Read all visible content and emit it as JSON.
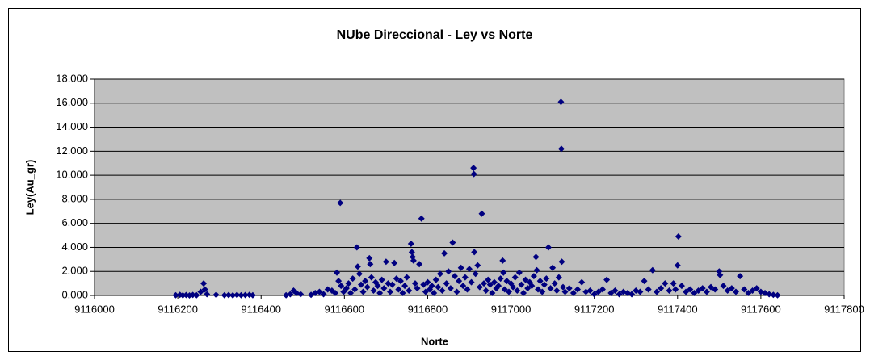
{
  "chart_data": {
    "type": "scatter",
    "title": "NUbe Direccional - Ley vs Norte",
    "x_label": "Norte",
    "y_label": "Ley(Au_gr)",
    "color": "#000080",
    "grid": true,
    "x": [
      9116195,
      9116205,
      9116212,
      9116220,
      9116228,
      9116236,
      9116245,
      9116255,
      9116262,
      9116265,
      9116270,
      9116292,
      9116312,
      9116322,
      9116332,
      9116342,
      9116352,
      9116362,
      9116372,
      9116380,
      9116460,
      9116470,
      9116478,
      9116485,
      9116495,
      9116520,
      9116530,
      9116540,
      9116550,
      9116560,
      9116570,
      9116578,
      9116582,
      9116586,
      9116590,
      9116592,
      9116598,
      9116605,
      9116610,
      9116615,
      9116620,
      9116625,
      9116630,
      9116632,
      9116636,
      9116640,
      9116645,
      9116650,
      9116655,
      9116660,
      9116662,
      9116665,
      9116670,
      9116675,
      9116680,
      9116685,
      9116690,
      9116695,
      9116700,
      9116705,
      9116710,
      9116715,
      9116720,
      9116725,
      9116730,
      9116735,
      9116740,
      9116745,
      9116750,
      9116755,
      9116760,
      9116762,
      9116764,
      9116766,
      9116770,
      9116775,
      9116780,
      9116785,
      9116790,
      9116795,
      9116800,
      9116805,
      9116810,
      9116815,
      9116820,
      9116825,
      9116830,
      9116835,
      9116840,
      9116845,
      9116850,
      9116855,
      9116860,
      9116865,
      9116870,
      9116875,
      9116880,
      9116885,
      9116890,
      9116895,
      9116900,
      9116905,
      9116910,
      9116911,
      9116912,
      9116915,
      9116920,
      9116925,
      9116930,
      9116935,
      9116940,
      9116945,
      9116950,
      9116955,
      9116960,
      9116965,
      9116970,
      9116975,
      9116980,
      9116982,
      9116985,
      9116990,
      9116995,
      9117000,
      9117005,
      9117010,
      9117015,
      9117020,
      9117025,
      9117030,
      9117035,
      9117040,
      9117045,
      9117050,
      9117055,
      9117060,
      9117062,
      9117065,
      9117070,
      9117075,
      9117080,
      9117085,
      9117090,
      9117095,
      9117100,
      9117105,
      9117110,
      9117115,
      9117120,
      9117121,
      9117122,
      9117125,
      9117130,
      9117140,
      9117150,
      9117160,
      9117170,
      9117180,
      9117190,
      9117200,
      9117210,
      9117220,
      9117230,
      9117240,
      9117250,
      9117260,
      9117270,
      9117280,
      9117290,
      9117300,
      9117310,
      9117320,
      9117330,
      9117340,
      9117350,
      9117360,
      9117370,
      9117380,
      9117390,
      9117395,
      9117400,
      9117402,
      9117410,
      9117420,
      9117430,
      9117440,
      9117450,
      9117460,
      9117470,
      9117480,
      9117490,
      9117500,
      9117502,
      9117510,
      9117520,
      9117530,
      9117540,
      9117550,
      9117560,
      9117570,
      9117580,
      9117590,
      9117600,
      9117610,
      9117620,
      9117630,
      9117640
    ],
    "values": [
      0.02,
      0.05,
      0.01,
      0.03,
      0,
      0.04,
      0.02,
      0.3,
      1.0,
      0.5,
      0.1,
      0.05,
      0.02,
      0.03,
      0.01,
      0.04,
      0.02,
      0.03,
      0.05,
      0.02,
      0.02,
      0.1,
      0.4,
      0.2,
      0.1,
      0.05,
      0.2,
      0.3,
      0.1,
      0.5,
      0.4,
      0.2,
      1.9,
      1.2,
      7.7,
      0.8,
      0.3,
      0.6,
      1.0,
      0.2,
      1.4,
      0.5,
      4.0,
      2.4,
      1.8,
      0.9,
      0.3,
      1.2,
      0.7,
      3.1,
      2.6,
      1.5,
      0.4,
      1.1,
      0.8,
      0.2,
      1.3,
      0.6,
      2.8,
      1.0,
      0.3,
      0.9,
      2.7,
      1.4,
      0.5,
      1.2,
      0.2,
      0.8,
      1.5,
      0.4,
      4.3,
      3.6,
      3.2,
      2.9,
      1.0,
      0.6,
      2.6,
      6.4,
      0.9,
      0.3,
      1.1,
      0.5,
      0.8,
      0.2,
      1.3,
      0.7,
      1.8,
      0.4,
      3.5,
      1.0,
      2.0,
      0.6,
      4.4,
      1.6,
      0.3,
      1.2,
      2.3,
      0.8,
      1.5,
      0.5,
      2.2,
      1.1,
      10.6,
      10.1,
      3.6,
      1.8,
      2.5,
      0.7,
      6.8,
      1.0,
      0.4,
      1.3,
      0.9,
      0.2,
      1.1,
      0.6,
      0.8,
      1.4,
      2.9,
      1.9,
      0.5,
      1.2,
      0.3,
      1.0,
      0.7,
      1.5,
      0.4,
      1.9,
      0.9,
      0.2,
      1.3,
      0.6,
      1.1,
      0.8,
      1.6,
      3.2,
      2.1,
      0.5,
      1.2,
      0.3,
      0.9,
      1.4,
      4.0,
      0.6,
      2.3,
      1.0,
      0.4,
      1.5,
      16.1,
      12.2,
      2.8,
      0.7,
      0.3,
      0.6,
      0.2,
      0.5,
      1.1,
      0.3,
      0.4,
      0.1,
      0.3,
      0.5,
      1.3,
      0.2,
      0.4,
      0.1,
      0.3,
      0.2,
      0.1,
      0.4,
      0.3,
      1.2,
      0.5,
      2.1,
      0.3,
      0.6,
      1.0,
      0.4,
      1.0,
      0.5,
      2.5,
      4.9,
      0.8,
      0.3,
      0.5,
      0.2,
      0.4,
      0.6,
      0.3,
      0.7,
      0.5,
      2.0,
      1.7,
      0.8,
      0.4,
      0.6,
      0.3,
      1.6,
      0.5,
      0.2,
      0.4,
      0.6,
      0.3,
      0.2,
      0.1,
      0.05,
      0.02
    ],
    "xlim": [
      9116000,
      9117800
    ],
    "xticks": [
      9116000,
      9116200,
      9116400,
      9116600,
      9116800,
      9117000,
      9117200,
      9117400,
      9117600,
      9117800
    ],
    "ylim": [
      0,
      18
    ],
    "yticks": [
      {
        "value": 0,
        "label": "0.000"
      },
      {
        "value": 2,
        "label": "2.000"
      },
      {
        "value": 4,
        "label": "4.000"
      },
      {
        "value": 6,
        "label": "6.000"
      },
      {
        "value": 8,
        "label": "8.000"
      },
      {
        "value": 10,
        "label": "10.000"
      },
      {
        "value": 12,
        "label": "12.000"
      },
      {
        "value": 14,
        "label": "14.000"
      },
      {
        "value": 16,
        "label": "16.000"
      },
      {
        "value": 18,
        "label": "18.000"
      }
    ]
  }
}
